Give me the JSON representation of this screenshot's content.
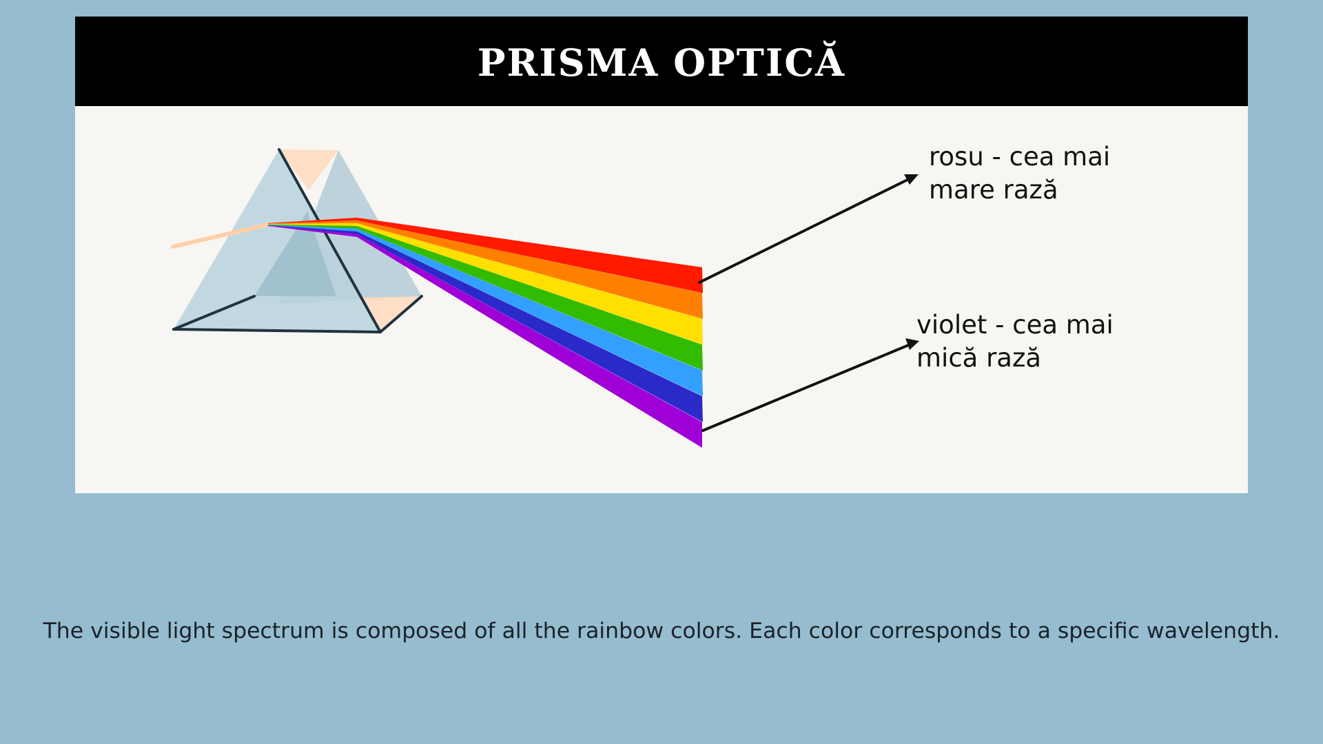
{
  "title": "PRISMA OPTICĂ",
  "labels": {
    "red_line1": "rosu - cea mai",
    "red_line2": "mare rază",
    "violet_line1": "violet - cea mai",
    "violet_line2": "mică rază"
  },
  "caption": "The visible light spectrum is composed of all the rainbow colors. Each color corresponds to a specific wavelength.",
  "colors": {
    "background": "#95bccf",
    "card": "#f8f6f2",
    "title_bar": "#000000",
    "spectrum": [
      "#ff1a00",
      "#ff8000",
      "#ffe000",
      "#33bb00",
      "#33a0ff",
      "#2a2ac8",
      "#a000d8"
    ]
  },
  "icons": [
    "prism-icon",
    "incoming-light-ray",
    "spectrum-beam",
    "arrow-icon"
  ]
}
